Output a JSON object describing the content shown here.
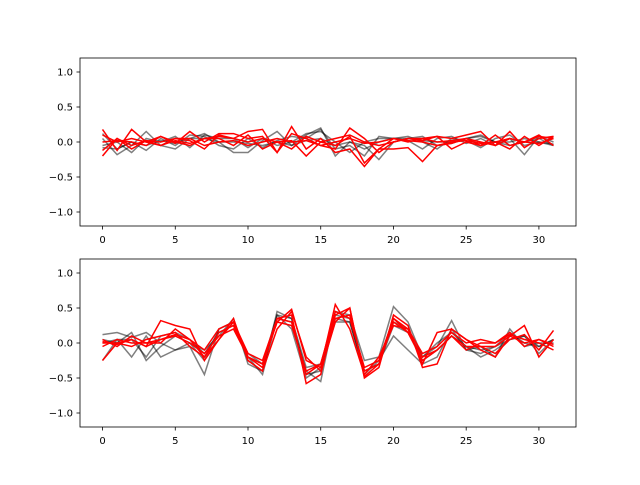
{
  "chart_data": [
    {
      "type": "line",
      "xlim": [
        -1.55,
        32.55
      ],
      "ylim": [
        -1.2,
        1.2
      ],
      "xticks": [
        0,
        5,
        10,
        15,
        20,
        25,
        30
      ],
      "yticks": [
        -1.0,
        -0.5,
        0.0,
        0.5,
        1.0
      ],
      "ytick_labels": [
        "−1.0",
        "−0.5",
        "0.0",
        "0.5",
        "1.0"
      ],
      "grid": false,
      "series_colors": {
        "gray": "#000000",
        "red": "#ff0000"
      },
      "series": [
        {
          "color": "gray",
          "values": [
            0.05,
            -0.18,
            -0.05,
            0.15,
            -0.05,
            -0.1,
            0.05,
            0.12,
            0.0,
            -0.15,
            -0.15,
            0.02,
            0.15,
            -0.05,
            0.1,
            0.2,
            -0.2,
            0.0,
            -0.05,
            -0.25,
            0.0,
            0.05,
            0.08,
            -0.05,
            -0.02,
            0.05,
            0.1,
            0.0,
            -0.05,
            0.0,
            0.05,
            -0.05
          ]
        },
        {
          "color": "gray",
          "values": [
            0.12,
            -0.1,
            0.0,
            -0.12,
            0.05,
            -0.05,
            0.1,
            0.08,
            -0.05,
            -0.1,
            0.05,
            -0.08,
            0.02,
            0.08,
            0.05,
            0.18,
            -0.1,
            -0.05,
            -0.2,
            0.08,
            0.05,
            0.02,
            -0.1,
            0.05,
            0.08,
            -0.02,
            0.05,
            -0.05,
            0.05,
            -0.18,
            0.08,
            0.0
          ]
        },
        {
          "color": "gray",
          "values": [
            -0.05,
            0.0,
            -0.15,
            0.05,
            0.0,
            0.08,
            -0.08,
            0.1,
            0.05,
            0.05,
            -0.08,
            0.05,
            -0.05,
            0.0,
            0.12,
            0.15,
            0.0,
            -0.15,
            0.0,
            0.05,
            0.05,
            0.08,
            0.0,
            -0.1,
            0.05,
            0.02,
            -0.08,
            0.05,
            0.1,
            -0.05,
            0.0,
            -0.03
          ]
        },
        {
          "color": "gray",
          "values": [
            -0.08,
            -0.1,
            0.0,
            -0.05,
            0.02,
            -0.02,
            0.05,
            0.05,
            0.0,
            0.0,
            -0.02,
            -0.05,
            0.0,
            -0.05,
            0.02,
            0.05,
            -0.05,
            0.0,
            -0.1,
            0.0,
            0.05,
            0.05,
            0.02,
            0.0,
            0.0,
            0.05,
            0.08,
            0.0,
            0.0,
            0.05,
            0.0,
            -0.05
          ]
        },
        {
          "color": "red",
          "values": [
            0.18,
            -0.12,
            0.18,
            0.0,
            0.08,
            -0.02,
            0.15,
            0.0,
            0.12,
            0.12,
            0.05,
            0.08,
            -0.15,
            0.12,
            0.05,
            -0.05,
            -0.1,
            0.2,
            0.05,
            -0.15,
            0.0,
            0.05,
            0.02,
            0.08,
            0.05,
            0.1,
            0.15,
            -0.05,
            0.15,
            -0.08,
            0.05,
            0.08
          ]
        },
        {
          "color": "red",
          "values": [
            -0.2,
            0.05,
            -0.05,
            0.02,
            -0.05,
            0.05,
            0.02,
            -0.1,
            0.1,
            0.05,
            0.15,
            0.18,
            -0.15,
            0.22,
            -0.1,
            0.05,
            -0.15,
            -0.1,
            -0.35,
            -0.1,
            -0.1,
            -0.08,
            -0.28,
            -0.05,
            -0.02,
            0.05,
            -0.05,
            0.1,
            -0.05,
            0.0,
            0.08,
            0.05
          ]
        },
        {
          "color": "red",
          "values": [
            0.0,
            0.02,
            0.0,
            -0.05,
            0.08,
            0.0,
            -0.05,
            0.05,
            0.05,
            -0.05,
            0.1,
            -0.1,
            0.0,
            0.02,
            -0.2,
            0.0,
            -0.05,
            0.08,
            -0.3,
            -0.1,
            0.05,
            0.0,
            0.05,
            0.08,
            -0.1,
            0.0,
            -0.05,
            0.0,
            -0.1,
            0.08,
            -0.05,
            0.08
          ]
        },
        {
          "color": "red",
          "values": [
            0.1,
            0.0,
            0.05,
            0.0,
            -0.05,
            0.02,
            -0.02,
            0.05,
            0.08,
            0.05,
            0.0,
            0.05,
            0.0,
            -0.1,
            0.08,
            0.0,
            0.05,
            0.1,
            0.0,
            -0.05,
            0.0,
            0.05,
            0.05,
            0.0,
            0.02,
            0.05,
            0.0,
            -0.05,
            0.05,
            0.0,
            0.1,
            -0.05
          ]
        },
        {
          "color": "red",
          "values": [
            -0.12,
            0.05,
            -0.1,
            0.02,
            0.0,
            0.05,
            0.05,
            -0.05,
            0.0,
            0.02,
            -0.05,
            0.0,
            0.05,
            0.0,
            0.02,
            -0.05,
            0.0,
            0.05,
            -0.02,
            0.0,
            0.05,
            0.02,
            0.0,
            -0.05,
            0.0,
            0.02,
            -0.02,
            0.0,
            0.05,
            0.0,
            -0.02,
            0.05
          ]
        }
      ]
    },
    {
      "type": "line",
      "xlim": [
        -1.55,
        32.55
      ],
      "ylim": [
        -1.2,
        1.2
      ],
      "xticks": [
        0,
        5,
        10,
        15,
        20,
        25,
        30
      ],
      "yticks": [
        -1.0,
        -0.5,
        0.0,
        0.5,
        1.0
      ],
      "ytick_labels": [
        "−1.0",
        "−0.5",
        "0.0",
        "0.5",
        "1.0"
      ],
      "grid": false,
      "series_colors": {
        "gray": "#000000",
        "red": "#ff0000"
      },
      "series": [
        {
          "color": "gray",
          "values": [
            0.12,
            0.15,
            0.08,
            0.15,
            0.0,
            -0.1,
            -0.05,
            -0.45,
            0.2,
            0.3,
            -0.2,
            -0.45,
            0.35,
            0.3,
            -0.4,
            -0.55,
            0.45,
            0.4,
            -0.25,
            -0.2,
            0.52,
            0.3,
            -0.2,
            -0.05,
            0.32,
            -0.1,
            -0.05,
            -0.2,
            0.2,
            -0.05,
            0.0,
            0.0
          ]
        },
        {
          "color": "gray",
          "values": [
            -0.25,
            0.05,
            -0.2,
            0.1,
            -0.2,
            -0.1,
            0.0,
            -0.1,
            0.1,
            0.35,
            -0.3,
            -0.4,
            0.4,
            0.2,
            -0.5,
            -0.35,
            0.3,
            0.3,
            -0.45,
            -0.25,
            0.1,
            -0.1,
            -0.3,
            -0.2,
            0.2,
            -0.1,
            -0.15,
            -0.05,
            0.05,
            0.1,
            -0.05,
            0.05
          ]
        },
        {
          "color": "gray",
          "values": [
            0.05,
            0.0,
            0.15,
            -0.25,
            -0.05,
            0.1,
            0.0,
            -0.25,
            0.2,
            0.3,
            -0.25,
            -0.4,
            0.45,
            0.35,
            -0.45,
            -0.4,
            0.35,
            0.3,
            -0.4,
            -0.3,
            0.3,
            0.2,
            -0.2,
            0.0,
            0.15,
            -0.05,
            -0.2,
            -0.1,
            0.05,
            0.1,
            -0.15,
            0.05
          ]
        },
        {
          "color": "gray",
          "values": [
            0.0,
            0.05,
            0.05,
            -0.2,
            0.1,
            0.15,
            0.05,
            -0.15,
            0.15,
            0.25,
            -0.15,
            -0.3,
            0.4,
            0.35,
            -0.35,
            -0.3,
            0.4,
            0.35,
            -0.4,
            -0.3,
            0.25,
            0.15,
            -0.25,
            -0.1,
            0.1,
            -0.05,
            -0.1,
            -0.05,
            0.15,
            0.0,
            -0.05,
            0.05
          ]
        },
        {
          "color": "red",
          "values": [
            -0.25,
            0.0,
            0.05,
            -0.05,
            0.32,
            0.25,
            0.2,
            -0.25,
            0.05,
            0.3,
            -0.2,
            -0.3,
            0.3,
            0.48,
            -0.25,
            -0.35,
            0.55,
            0.2,
            -0.45,
            -0.2,
            0.25,
            0.2,
            -0.3,
            0.15,
            0.2,
            0.05,
            -0.05,
            -0.15,
            0.05,
            0.12,
            -0.1,
            0.18
          ]
        },
        {
          "color": "red",
          "values": [
            0.05,
            -0.05,
            0.1,
            0.0,
            0.0,
            0.2,
            0.05,
            -0.2,
            0.15,
            0.25,
            -0.2,
            -0.35,
            0.35,
            0.4,
            -0.58,
            -0.45,
            0.4,
            0.5,
            -0.5,
            -0.35,
            0.4,
            0.25,
            -0.35,
            -0.3,
            0.2,
            0.05,
            -0.1,
            -0.2,
            0.1,
            0.25,
            -0.2,
            0.05
          ]
        },
        {
          "color": "red",
          "values": [
            0.0,
            0.0,
            -0.05,
            0.05,
            0.1,
            0.15,
            -0.05,
            -0.2,
            0.05,
            0.35,
            -0.25,
            -0.4,
            0.2,
            0.45,
            -0.2,
            -0.4,
            0.3,
            0.5,
            -0.48,
            -0.3,
            0.35,
            0.2,
            -0.15,
            -0.05,
            0.15,
            0.0,
            0.05,
            0.0,
            0.12,
            0.05,
            0.0,
            -0.1
          ]
        },
        {
          "color": "red",
          "values": [
            -0.05,
            0.05,
            0.0,
            0.0,
            0.05,
            0.1,
            0.0,
            -0.15,
            0.1,
            0.2,
            -0.2,
            -0.3,
            0.3,
            0.25,
            -0.4,
            -0.3,
            0.45,
            0.35,
            -0.35,
            -0.25,
            0.35,
            0.15,
            -0.2,
            -0.1,
            0.1,
            -0.1,
            0.0,
            0.0,
            0.15,
            -0.05,
            0.05,
            -0.05
          ]
        },
        {
          "color": "red",
          "values": [
            0.02,
            -0.02,
            0.05,
            -0.05,
            0.05,
            0.12,
            0.05,
            -0.1,
            0.2,
            0.3,
            -0.15,
            -0.25,
            0.35,
            0.3,
            -0.45,
            -0.3,
            0.35,
            0.4,
            -0.4,
            -0.3,
            0.3,
            0.15,
            -0.25,
            -0.1,
            0.1,
            -0.05,
            -0.05,
            -0.05,
            0.1,
            0.0,
            0.05,
            -0.02
          ]
        }
      ]
    }
  ]
}
